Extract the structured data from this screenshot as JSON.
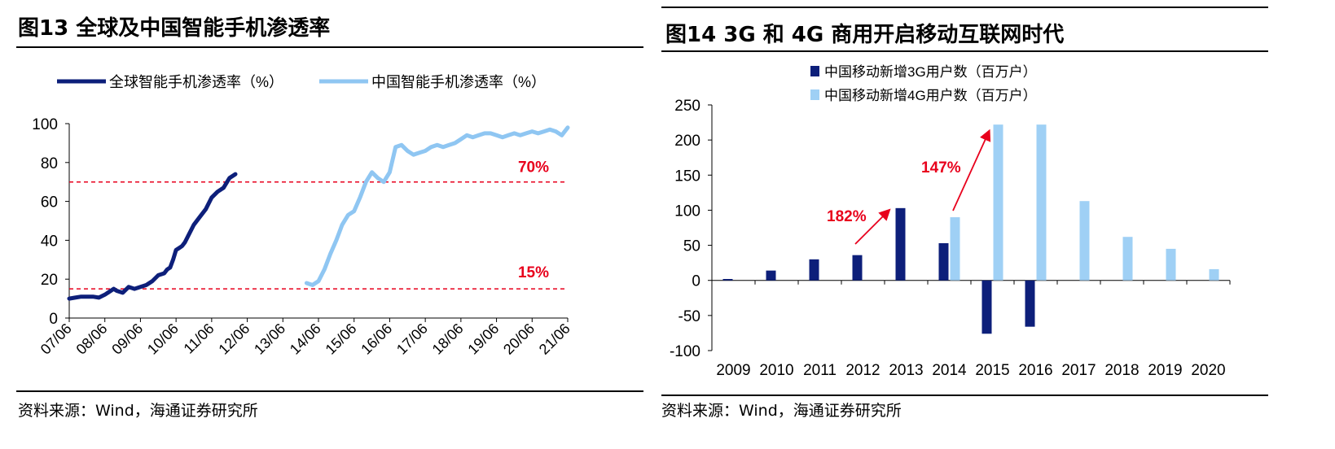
{
  "left": {
    "title": "图13 全球及中国智能手机渗透率",
    "source": "资料来源：Wind，海通证券研究所",
    "chart_data": {
      "type": "line",
      "title": "图13 全球及中国智能手机渗透率",
      "x_tick_labels": [
        "07/06",
        "08/06",
        "09/06",
        "10/06",
        "11/06",
        "12/06",
        "13/06",
        "14/06",
        "15/06",
        "16/06",
        "17/06",
        "18/06",
        "19/06",
        "20/06",
        "21/06"
      ],
      "ylim": [
        0,
        100
      ],
      "y_ticks": [
        0,
        20,
        40,
        60,
        80,
        100
      ],
      "legend_position": "top",
      "reference_lines": [
        {
          "value": 70,
          "label": "70%",
          "color": "#e8001c"
        },
        {
          "value": 15,
          "label": "15%",
          "color": "#e8001c"
        }
      ],
      "series": [
        {
          "name": "全球智能手机渗透率（%）",
          "color": "#0d1f7a",
          "x": [
            0,
            0.5,
            1,
            1.5,
            2,
            2.5,
            3,
            3.25,
            3.5,
            3.75,
            4,
            4.5,
            5,
            5.5,
            6,
            6.5,
            7,
            7.5,
            8,
            8.25,
            8.5,
            8.75,
            9,
            9.25,
            9.5,
            9.75,
            10,
            10.5,
            11,
            11.5,
            12,
            12.5,
            13,
            13.5,
            14
          ],
          "values": [
            10,
            10.5,
            11,
            11,
            11,
            10.5,
            12,
            13,
            14,
            15,
            14,
            13,
            16,
            15,
            16,
            17,
            19,
            22,
            23,
            25,
            26,
            30,
            35,
            36,
            37,
            39,
            42,
            48,
            52,
            56,
            62,
            65,
            67,
            72,
            74
          ]
        },
        {
          "name": "中国智能手机渗透率（%）",
          "color": "#8fc6f2",
          "x": [
            20,
            20.5,
            21,
            21.5,
            22,
            22.5,
            23,
            23.5,
            24,
            24.5,
            25,
            25.5,
            26,
            26.5,
            27,
            27.5,
            28,
            28.5,
            29,
            29.5,
            30,
            30.5,
            31,
            31.5,
            32,
            32.5,
            33,
            33.5,
            34,
            34.5,
            35,
            35.5,
            36,
            36.5,
            37,
            37.5,
            38,
            38.5,
            39,
            39.5,
            40,
            40.5,
            41,
            41.5,
            42
          ],
          "values": [
            18,
            17,
            19,
            25,
            33,
            40,
            48,
            53,
            55,
            62,
            70,
            75,
            72,
            70,
            75,
            88,
            89,
            86,
            84,
            85,
            86,
            88,
            89,
            88,
            89,
            90,
            92,
            94,
            93,
            94,
            95,
            95,
            94,
            93,
            94,
            95,
            94,
            95,
            96,
            95,
            96,
            97,
            96,
            94,
            98
          ]
        }
      ]
    }
  },
  "right": {
    "title": "图14 3G 和 4G 商用开启移动互联网时代",
    "source": "资料来源：Wind，海通证券研究所",
    "chart_data": {
      "type": "bar",
      "title": "图14 3G 和 4G 商用开启移动互联网时代",
      "categories": [
        "2009",
        "2010",
        "2011",
        "2012",
        "2013",
        "2014",
        "2015",
        "2016",
        "2017",
        "2018",
        "2019",
        "2020"
      ],
      "ylim": [
        -100,
        250
      ],
      "y_ticks": [
        -100,
        -50,
        0,
        50,
        100,
        150,
        200,
        250
      ],
      "legend_position": "top",
      "series": [
        {
          "name": "中国移动新增3G用户数（百万户）",
          "color": "#0d1f7a",
          "values": [
            2,
            14,
            30,
            36,
            103,
            53,
            -76,
            -66,
            null,
            null,
            null,
            null
          ]
        },
        {
          "name": "中国移动新增4G用户数（百万户）",
          "color": "#9fd0f5",
          "values": [
            null,
            null,
            null,
            null,
            null,
            90,
            222,
            222,
            113,
            62,
            45,
            16
          ]
        }
      ],
      "annotations": [
        {
          "text": "182%",
          "color": "#e8001c"
        },
        {
          "text": "147%",
          "color": "#e8001c"
        }
      ]
    }
  }
}
